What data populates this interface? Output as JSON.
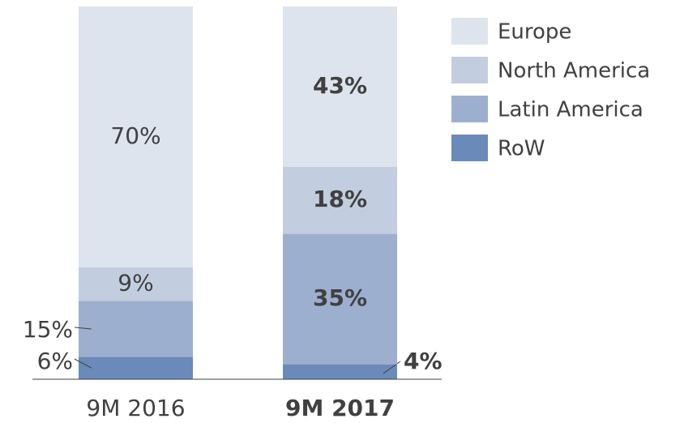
{
  "chart_data": {
    "type": "stacked_bar",
    "categories": [
      "9M 2016",
      "9M 2017"
    ],
    "series": [
      {
        "name": "RoW",
        "color": "#6a8ab9",
        "values": [
          6,
          4
        ],
        "value_labels": [
          "6%",
          "4%"
        ]
      },
      {
        "name": "Latin America",
        "color": "#9dafcf",
        "values": [
          15,
          35
        ],
        "value_labels": [
          "15%",
          "35%"
        ]
      },
      {
        "name": "North America",
        "color": "#c2cee0",
        "values": [
          9,
          18
        ],
        "value_labels": [
          "9%",
          "18%"
        ]
      },
      {
        "name": "Europe",
        "color": "#dde4ee",
        "values": [
          70,
          43
        ],
        "value_labels": [
          "70%",
          "43%"
        ]
      }
    ]
  }
}
